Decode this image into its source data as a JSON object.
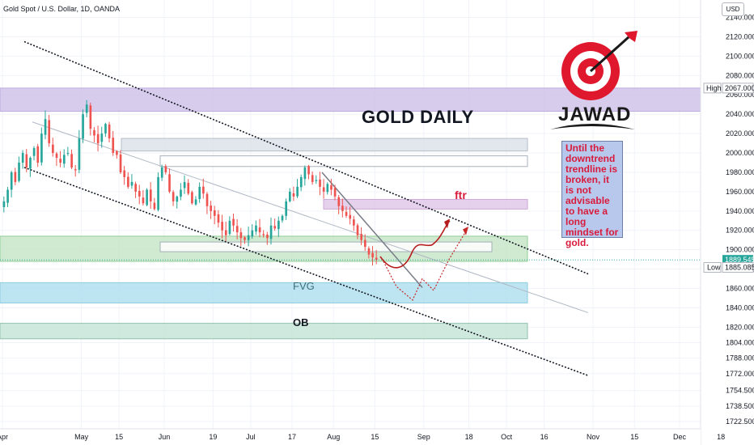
{
  "header": {
    "symbol": "Gold Spot / U.S. Dollar, 1D, OANDA",
    "currency": "USD"
  },
  "annotations": {
    "title": "GOLD DAILY",
    "note": "Until the downtrend trendline is broken, it is not advisable to have a long mindset for gold.",
    "ftr": "ftr",
    "fvg": "FVG",
    "ob": "OB",
    "logo_text": "JAWAD"
  },
  "colors": {
    "bull": "#26a69a",
    "bear": "#ef5350",
    "resistance_zone": "#d1c4e9",
    "support_zone": "#c8e6c9",
    "fvg_zone": "#b2e0ef",
    "ob_zone": "#c8e6d9",
    "accent_red": "#d81b3c",
    "price_line": "#26a69a"
  },
  "chart_data": {
    "type": "candlestick",
    "title": "GOLD DAILY",
    "xlabel": "",
    "ylabel": "",
    "ylim": [
      1715,
      2158
    ],
    "y_ticks": [
      2140.0,
      2120.0,
      2100.0,
      2080.0,
      2060.0,
      2040.0,
      2020.0,
      2000.0,
      1980.0,
      1960.0,
      1940.0,
      1920.0,
      1900.0,
      1880.0,
      1860.0,
      1840.0,
      1820.0,
      1804.0,
      1788.0,
      1772.0,
      1754.5,
      1738.5,
      1722.5
    ],
    "x_ticks": [
      {
        "label": "Apr",
        "x": 0
      },
      {
        "label": "May",
        "x": 21
      },
      {
        "label": "15",
        "x": 31
      },
      {
        "label": "Jun",
        "x": 43
      },
      {
        "label": "19",
        "x": 56
      },
      {
        "label": "Jul",
        "x": 66
      },
      {
        "label": "17",
        "x": 77
      },
      {
        "label": "Aug",
        "x": 88
      },
      {
        "label": "15",
        "x": 99
      },
      {
        "label": "Sep",
        "x": 112
      },
      {
        "label": "18",
        "x": 124
      },
      {
        "label": "Oct",
        "x": 134
      },
      {
        "label": "16",
        "x": 144
      },
      {
        "label": "Nov",
        "x": 157
      },
      {
        "label": "15",
        "x": 168
      },
      {
        "label": "Dec",
        "x": 180
      },
      {
        "label": "18",
        "x": 191
      }
    ],
    "price_labels": {
      "high": {
        "label": "High",
        "value": 2067.0
      },
      "current": {
        "value": 1889.545
      },
      "low": {
        "label": "Low",
        "value": 1885.085
      }
    },
    "closes": [
      1950,
      1962,
      1980,
      1970,
      1990,
      2000,
      1985,
      1995,
      2005,
      1990,
      2020,
      2035,
      2010,
      2000,
      1995,
      1990,
      1998,
      2000,
      1985,
      1982,
      2015,
      2040,
      2050,
      2025,
      2018,
      2010,
      2020,
      2030,
      2015,
      2000,
      1998,
      1980,
      1975,
      1965,
      1970,
      1960,
      1955,
      1948,
      1962,
      1950,
      1942,
      1975,
      1985,
      1980,
      1960,
      1950,
      1955,
      1962,
      1970,
      1958,
      1948,
      1952,
      1965,
      1958,
      1945,
      1940,
      1935,
      1928,
      1920,
      1915,
      1930,
      1925,
      1918,
      1912,
      1910,
      1915,
      1920,
      1925,
      1918,
      1915,
      1912,
      1925,
      1922,
      1930,
      1935,
      1950,
      1960,
      1955,
      1965,
      1975,
      1985,
      1978,
      1970,
      1972,
      1965,
      1960,
      1968,
      1962,
      1955,
      1945,
      1940,
      1935,
      1932,
      1925,
      1915,
      1910,
      1903,
      1895,
      1892,
      1889.545
    ],
    "resistance_zones": [
      {
        "name": "high-zone",
        "top": 2067,
        "bottom": 2043
      }
    ],
    "levels": [
      {
        "name": "supply-box",
        "top": 2015,
        "bottom": 2002
      },
      {
        "name": "white-box-upper",
        "top": 1997,
        "bottom": 1986
      },
      {
        "name": "ftr-zone",
        "top": 1952,
        "bottom": 1942
      },
      {
        "name": "support-zone",
        "top": 1914,
        "bottom": 1888
      },
      {
        "name": "white-box-lower",
        "top": 1908,
        "bottom": 1898
      },
      {
        "name": "fvg-zone",
        "top": 1866,
        "bottom": 1845
      },
      {
        "name": "ob-zone",
        "top": 1824,
        "bottom": 1808
      }
    ]
  }
}
